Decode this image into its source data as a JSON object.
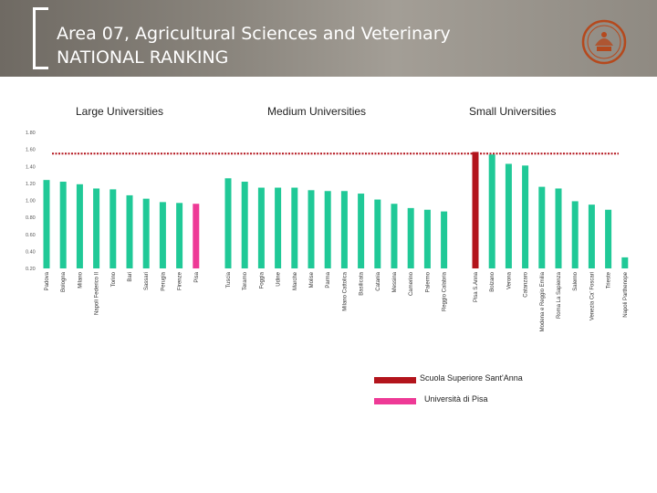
{
  "header": {
    "title_line1": "Area 07, Agricultural Sciences and Veterinary",
    "title_line2": "NATIONAL RANKING"
  },
  "colors": {
    "bar": "#20c997",
    "sant_anna": "#b3141c",
    "pisa": "#ee3a96",
    "threshold_line": "#b3141c",
    "header_bg": "#8a857d",
    "logo": "#b5491d"
  },
  "chart_data": {
    "type": "bar",
    "ylim": [
      0.2,
      1.8
    ],
    "yticks": [
      "0.20",
      "0.40",
      "0.60",
      "0.80",
      "1.00",
      "1.20",
      "1.40",
      "1.60",
      "1.80"
    ],
    "reference_line": 1.55,
    "groups": [
      {
        "name": "Large Universities",
        "bars": [
          {
            "label": "Padova",
            "value": 1.24
          },
          {
            "label": "Bologna",
            "value": 1.22
          },
          {
            "label": "Milano",
            "value": 1.19
          },
          {
            "label": "Napoli Federico II",
            "value": 1.14
          },
          {
            "label": "Torino",
            "value": 1.13
          },
          {
            "label": "Bari",
            "value": 1.06
          },
          {
            "label": "Sassari",
            "value": 1.02
          },
          {
            "label": "Perugia",
            "value": 0.98
          },
          {
            "label": "Firenze",
            "value": 0.97
          },
          {
            "label": "Pisa",
            "value": 0.96,
            "highlight": "pisa"
          }
        ]
      },
      {
        "name": "Medium Universities",
        "bars": [
          {
            "label": "Tuscia",
            "value": 1.26
          },
          {
            "label": "Teramo",
            "value": 1.22
          },
          {
            "label": "Foggia",
            "value": 1.15
          },
          {
            "label": "Udine",
            "value": 1.15
          },
          {
            "label": "Marche",
            "value": 1.15
          },
          {
            "label": "Molise",
            "value": 1.12
          },
          {
            "label": "Parma",
            "value": 1.11
          },
          {
            "label": "Milano Cattolica",
            "value": 1.11
          },
          {
            "label": "Basilicata",
            "value": 1.08
          },
          {
            "label": "Catania",
            "value": 1.01
          },
          {
            "label": "Messina",
            "value": 0.96
          },
          {
            "label": "Camerino",
            "value": 0.91
          },
          {
            "label": "Palermo",
            "value": 0.89
          },
          {
            "label": "Reggio Calabria",
            "value": 0.87
          }
        ]
      },
      {
        "name": "Small Universities",
        "bars": [
          {
            "label": "Pisa S.Anna",
            "value": 1.57,
            "highlight": "sant_anna"
          },
          {
            "label": "Bolzano",
            "value": 1.54
          },
          {
            "label": "Verona",
            "value": 1.43
          },
          {
            "label": "Catanzaro",
            "value": 1.41
          },
          {
            "label": "Modena e Reggio Emilia",
            "value": 1.16
          },
          {
            "label": "Roma La Sapienza",
            "value": 1.14
          },
          {
            "label": "Salerno",
            "value": 0.99
          },
          {
            "label": "Venezia Ca' Foscari",
            "value": 0.95
          },
          {
            "label": "Trieste",
            "value": 0.89
          },
          {
            "label": "Napoli Parthenope",
            "value": 0.33
          }
        ]
      }
    ],
    "legend": [
      {
        "label": "Scuola Superiore Sant'Anna",
        "color_key": "sant_anna"
      },
      {
        "label": "Università di Pisa",
        "color_key": "pisa"
      }
    ]
  }
}
